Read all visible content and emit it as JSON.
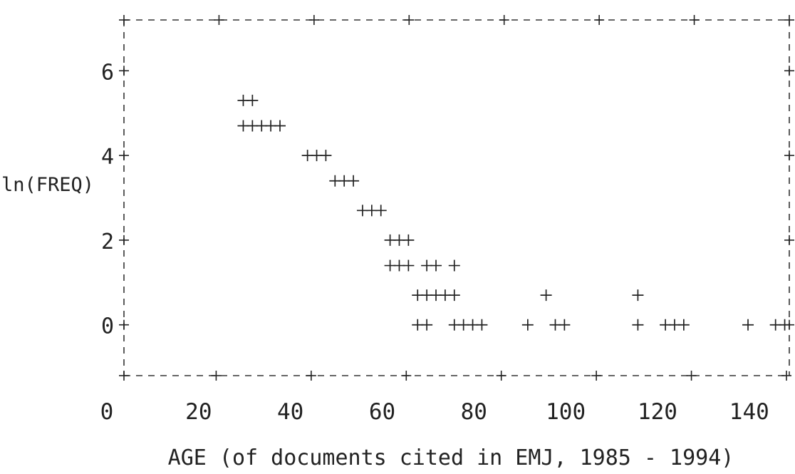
{
  "chart_data": {
    "type": "scatter",
    "title": "",
    "xlabel": "AGE (of documents cited in EMJ, 1985 - 1994)",
    "ylabel": "ln(FREQ)",
    "xlim": [
      0,
      145
    ],
    "ylim": [
      -1.2,
      7.2
    ],
    "x_ticks": [
      "0",
      "20",
      "40",
      "60",
      "80",
      "100",
      "120",
      "140"
    ],
    "y_ticks": [
      "0",
      "2",
      "4",
      "6"
    ],
    "x_tick_values": [
      0,
      20,
      40,
      60,
      80,
      100,
      120,
      140
    ],
    "y_tick_values": [
      0,
      2,
      4,
      6
    ],
    "grid": false,
    "marker": "+",
    "points": [
      {
        "x": 26,
        "y": 5.3
      },
      {
        "x": 28,
        "y": 5.3
      },
      {
        "x": 26,
        "y": 4.7
      },
      {
        "x": 28,
        "y": 4.7
      },
      {
        "x": 30,
        "y": 4.7
      },
      {
        "x": 32,
        "y": 4.7
      },
      {
        "x": 34,
        "y": 4.7
      },
      {
        "x": 40,
        "y": 4.0
      },
      {
        "x": 42,
        "y": 4.0
      },
      {
        "x": 44,
        "y": 4.0
      },
      {
        "x": 46,
        "y": 3.4
      },
      {
        "x": 48,
        "y": 3.4
      },
      {
        "x": 50,
        "y": 3.4
      },
      {
        "x": 52,
        "y": 2.7
      },
      {
        "x": 54,
        "y": 2.7
      },
      {
        "x": 56,
        "y": 2.7
      },
      {
        "x": 58,
        "y": 2.0
      },
      {
        "x": 60,
        "y": 2.0
      },
      {
        "x": 62,
        "y": 2.0
      },
      {
        "x": 58,
        "y": 1.4
      },
      {
        "x": 60,
        "y": 1.4
      },
      {
        "x": 62,
        "y": 1.4
      },
      {
        "x": 66,
        "y": 1.4
      },
      {
        "x": 68,
        "y": 1.4
      },
      {
        "x": 72,
        "y": 1.4
      },
      {
        "x": 64,
        "y": 0.7
      },
      {
        "x": 66,
        "y": 0.7
      },
      {
        "x": 68,
        "y": 0.7
      },
      {
        "x": 70,
        "y": 0.7
      },
      {
        "x": 72,
        "y": 0.7
      },
      {
        "x": 92,
        "y": 0.7
      },
      {
        "x": 112,
        "y": 0.7
      },
      {
        "x": 64,
        "y": 0.0
      },
      {
        "x": 66,
        "y": 0.0
      },
      {
        "x": 72,
        "y": 0.0
      },
      {
        "x": 74,
        "y": 0.0
      },
      {
        "x": 76,
        "y": 0.0
      },
      {
        "x": 78,
        "y": 0.0
      },
      {
        "x": 88,
        "y": 0.0
      },
      {
        "x": 94,
        "y": 0.0
      },
      {
        "x": 96,
        "y": 0.0
      },
      {
        "x": 112,
        "y": 0.0
      },
      {
        "x": 118,
        "y": 0.0
      },
      {
        "x": 120,
        "y": 0.0
      },
      {
        "x": 122,
        "y": 0.0
      },
      {
        "x": 136,
        "y": 0.0
      },
      {
        "x": 142,
        "y": 0.0
      },
      {
        "x": 144,
        "y": 0.0
      }
    ]
  }
}
